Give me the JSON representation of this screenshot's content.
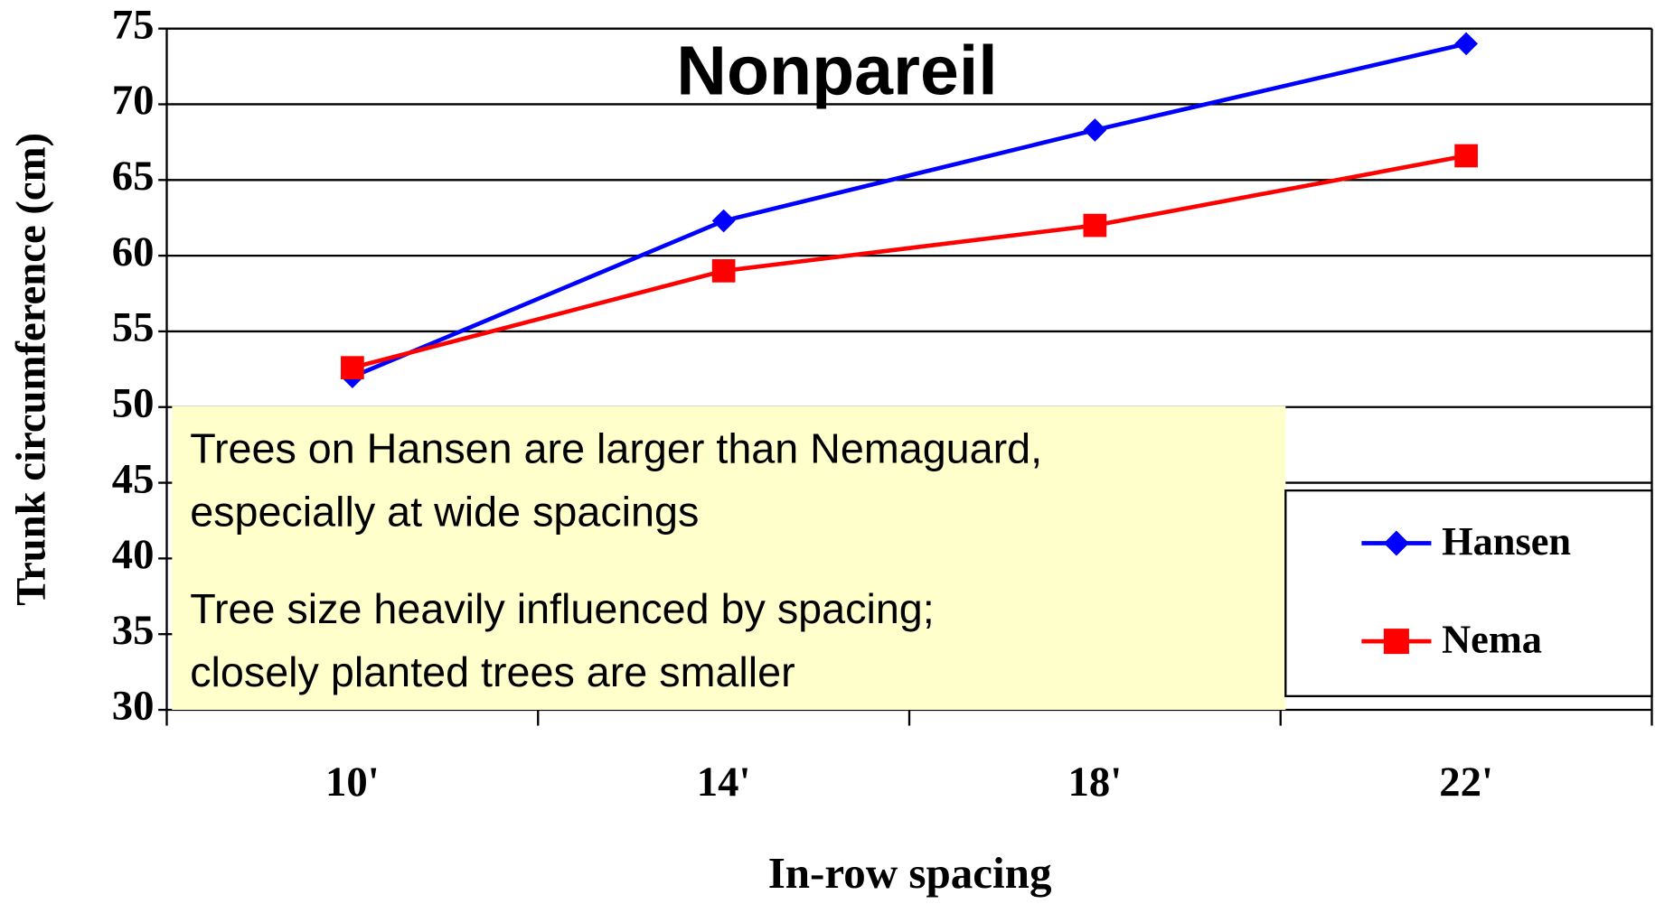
{
  "chart_data": {
    "type": "line",
    "title": "Nonpareil",
    "categories": [
      "10'",
      "14'",
      "18'",
      "22'"
    ],
    "series": [
      {
        "name": "Hansen",
        "color": "#0000ff",
        "marker": "diamond",
        "values": [
          52,
          62.3,
          68.3,
          74
        ]
      },
      {
        "name": "Nema",
        "color": "#ff0000",
        "marker": "square",
        "values": [
          52.6,
          59,
          62,
          66.6
        ]
      }
    ],
    "ylim": [
      30,
      75
    ],
    "yticks": [
      30,
      35,
      40,
      45,
      50,
      55,
      60,
      65,
      70,
      75
    ],
    "grid": true,
    "xlabel": "In-row spacing",
    "ylabel": "Trunk circumference (cm)",
    "legend": "lower right",
    "annotations": [
      [
        "Trees on Hansen are larger than Nemaguard,",
        "especially at wide spacings"
      ],
      [
        "Tree size heavily influenced by spacing;",
        "closely planted trees are smaller"
      ]
    ]
  }
}
